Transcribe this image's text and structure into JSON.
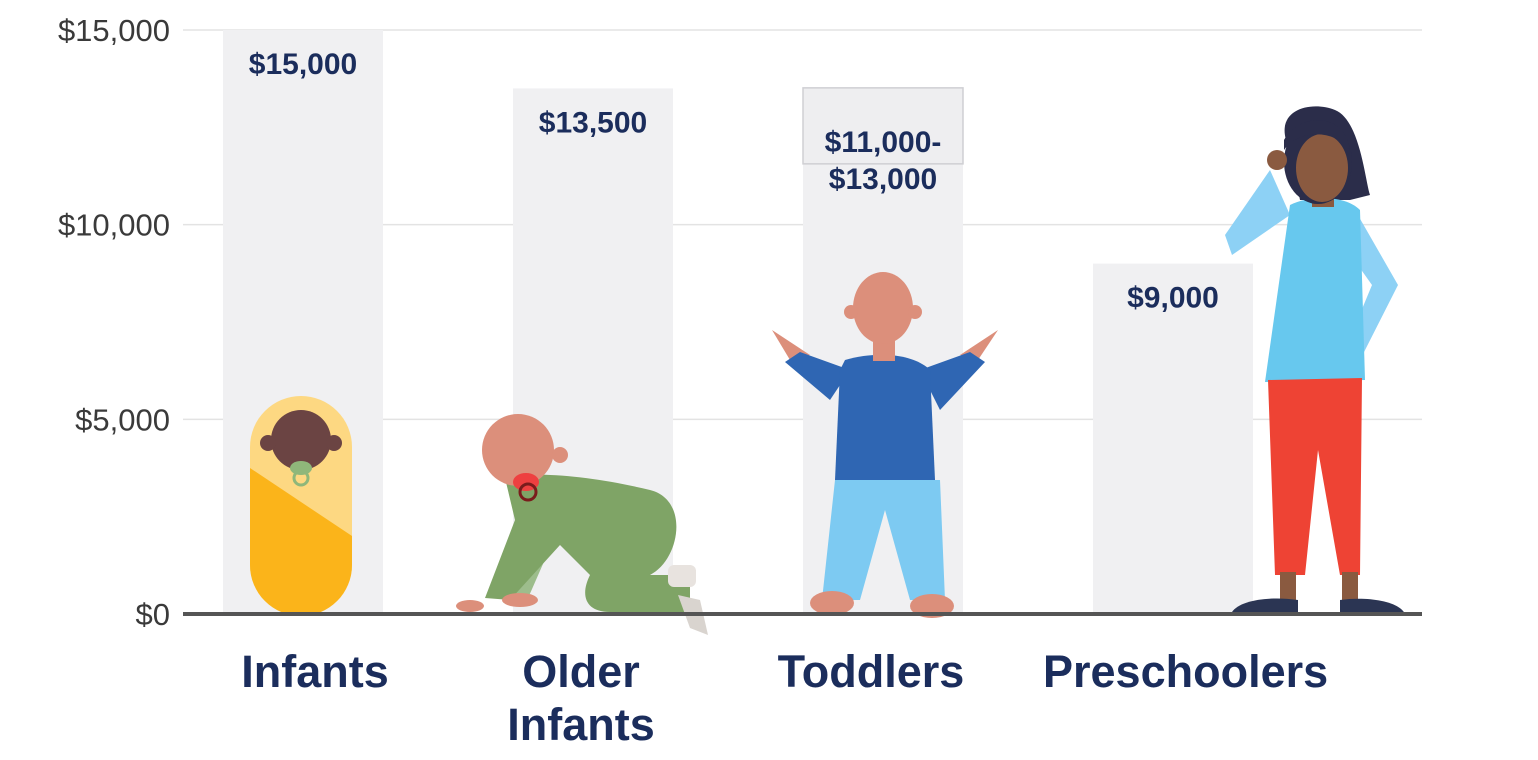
{
  "chart_data": {
    "type": "bar",
    "categories": [
      "Infants",
      "Older Infants",
      "Toddlers",
      "Preschoolers"
    ],
    "category_lines": [
      [
        "Infants"
      ],
      [
        "Older",
        "Infants"
      ],
      [
        "Toddlers"
      ],
      [
        "Preschoolers"
      ]
    ],
    "values": [
      15000,
      13500,
      13000,
      9000
    ],
    "range_low": [
      null,
      null,
      11000,
      null
    ],
    "data_labels": [
      [
        "$15,000"
      ],
      [
        "$13,500"
      ],
      [
        "$11,000-",
        "$13,000"
      ],
      [
        "$9,000"
      ]
    ],
    "yticks": [
      0,
      5000,
      10000,
      15000
    ],
    "ytick_labels": [
      "$0",
      "$5,000",
      "$10,000",
      "$15,000"
    ],
    "ylim": [
      0,
      15000
    ],
    "grid": true,
    "title": "",
    "xlabel": "",
    "ylabel": "",
    "colors": {
      "bar": "#f0f0f2",
      "label_text": "#1b2d5c",
      "gridline": "#e3e3e3",
      "axis": "#555555"
    },
    "illustrations": [
      "swaddled-infant-icon",
      "crawling-baby-icon",
      "standing-toddler-icon",
      "standing-woman-icon"
    ]
  }
}
